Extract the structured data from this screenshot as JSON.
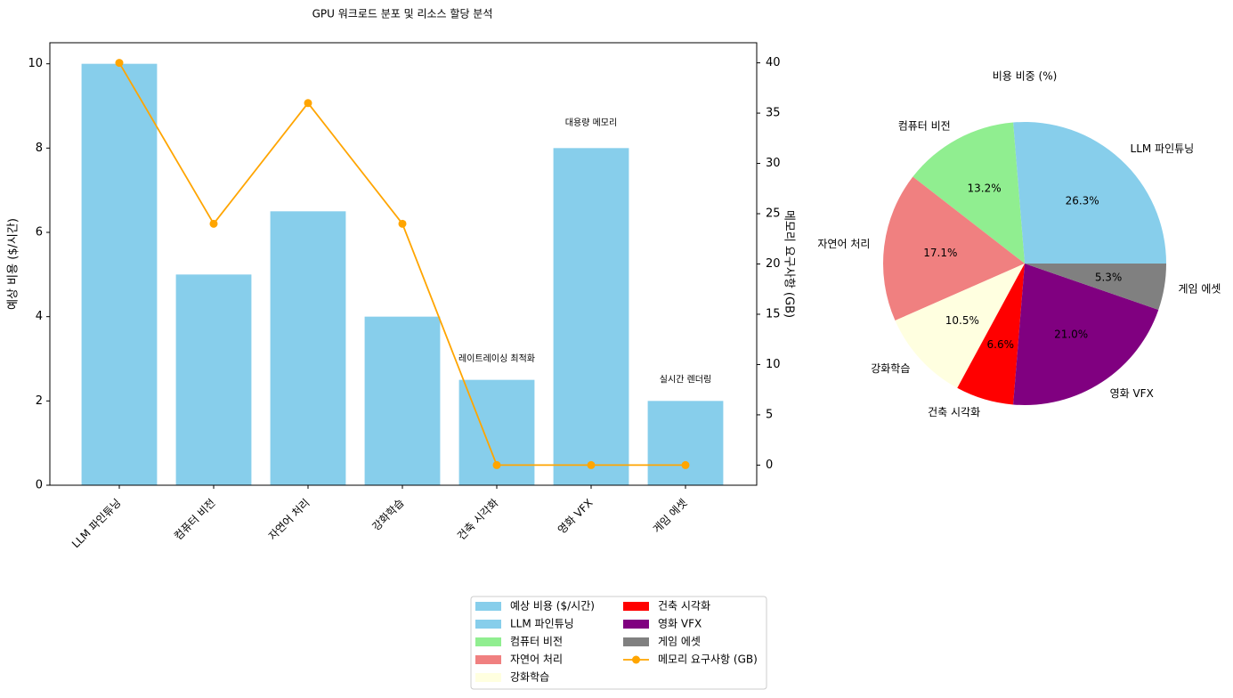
{
  "chart_data": [
    {
      "type": "bar",
      "title": "GPU 워크로드 분포 및 리소스 할당 분석",
      "categories": [
        "LLM 파인튜닝",
        "컴퓨터 비전",
        "자연어 처리",
        "강화학습",
        "건축 시각화",
        "영화 VFX",
        "게임 에셋"
      ],
      "series": [
        {
          "name": "예상 비용 ($/시간)",
          "type": "bar",
          "color": "#87ceeb",
          "values": [
            10,
            5,
            6.5,
            4,
            2.5,
            8,
            2
          ]
        },
        {
          "name": "메모리 요구사항 (GB)",
          "type": "line",
          "axis": "y2",
          "color": "#ffa500",
          "values": [
            40,
            24,
            36,
            24,
            0,
            0,
            0
          ]
        }
      ],
      "ylabel": "예상 비용 ($/시간)",
      "y_axis_color": "#0000ff",
      "y2label": "메모리 요구사항 (GB)",
      "ylim": [
        0,
        10.5
      ],
      "yticks": [
        0,
        2,
        4,
        6,
        8,
        10
      ],
      "y2lim": [
        -2,
        42
      ],
      "y2ticks": [
        0,
        5,
        10,
        15,
        20,
        25,
        30,
        35,
        40
      ],
      "annotations": [
        {
          "text": "대용량 메모리",
          "x": "영화 VFX",
          "y": 8.6
        },
        {
          "text": "레이트레이싱 최적화",
          "x": "건축 시각화",
          "y": 3.0
        },
        {
          "text": "실시간 렌더링",
          "x": "게임 에셋",
          "y": 2.5
        }
      ],
      "legend": "lower center"
    },
    {
      "type": "pie",
      "title": "비용 비중 (%)",
      "categories": [
        "LLM 파인튜닝",
        "컴퓨터 비전",
        "자연어 처리",
        "강화학습",
        "건축 시각화",
        "영화 VFX",
        "게임 에셋"
      ],
      "values": [
        26.3,
        13.2,
        17.1,
        10.5,
        6.6,
        21.0,
        5.3
      ],
      "value_labels": [
        "26.3%",
        "13.2%",
        "17.1%",
        "10.5%",
        "6.6%",
        "21.0%",
        "5.3%"
      ],
      "colors": [
        "#87ceeb",
        "#90ee90",
        "#f08080",
        "#ffffe0",
        "#ff0000",
        "#800080",
        "#808080"
      ]
    }
  ]
}
